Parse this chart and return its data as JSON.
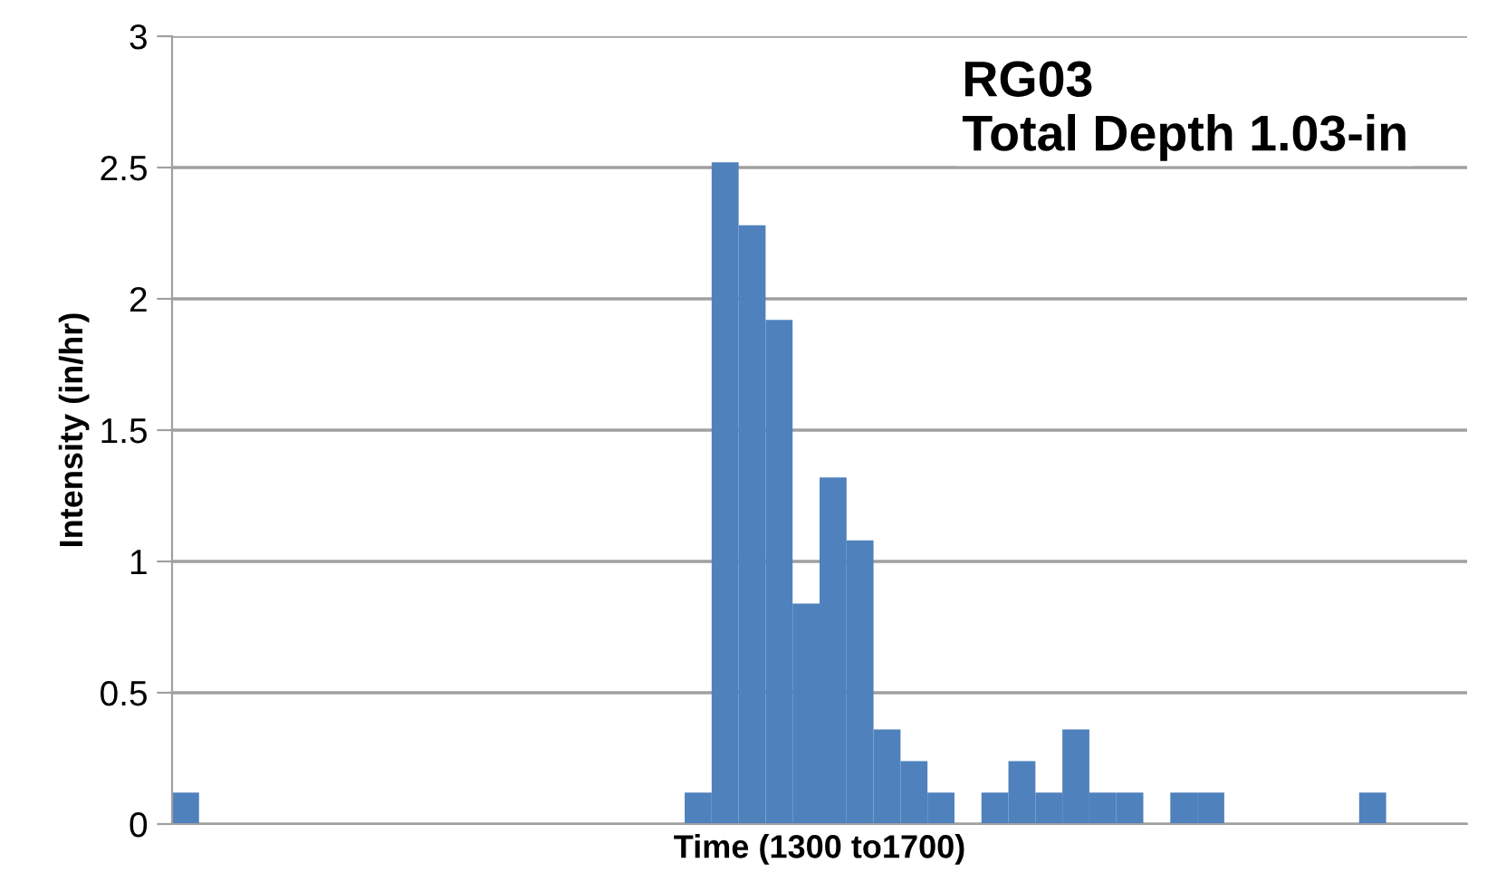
{
  "chart_data": {
    "type": "bar",
    "xlabel": "Time (1300 to1700)",
    "ylabel": "Intensity (in/hr)",
    "annotations": [
      "RG03\nTotal Depth 1.03-in"
    ],
    "categories": [
      null,
      null,
      null,
      null,
      null,
      null,
      null,
      null,
      null,
      null,
      null,
      null,
      null,
      null,
      null,
      null,
      null,
      null,
      null,
      null,
      null,
      null,
      null,
      null,
      null,
      null,
      null,
      null,
      null,
      null,
      null,
      null,
      null,
      null,
      null,
      null,
      null,
      null,
      null,
      null,
      null,
      null,
      null,
      null,
      null,
      null,
      null,
      null
    ],
    "values": [
      0.12,
      0,
      0,
      0,
      0,
      0,
      0,
      0,
      0,
      0,
      0,
      0,
      0,
      0,
      0,
      0,
      0,
      0,
      0,
      0.12,
      2.52,
      2.28,
      1.92,
      0.84,
      1.32,
      1.08,
      0.36,
      0.24,
      0.12,
      0,
      0.12,
      0.24,
      0.12,
      0.36,
      0.12,
      0.12,
      0,
      0.12,
      0.12,
      0,
      0,
      0,
      0,
      0,
      0.12,
      0,
      0,
      0
    ],
    "color": "#4f81bd",
    "ylim": [
      0,
      3
    ],
    "yticks": [
      0,
      0.5,
      1,
      1.5,
      2,
      2.5,
      3
    ],
    "grid": "y",
    "tick_labels": "y"
  }
}
